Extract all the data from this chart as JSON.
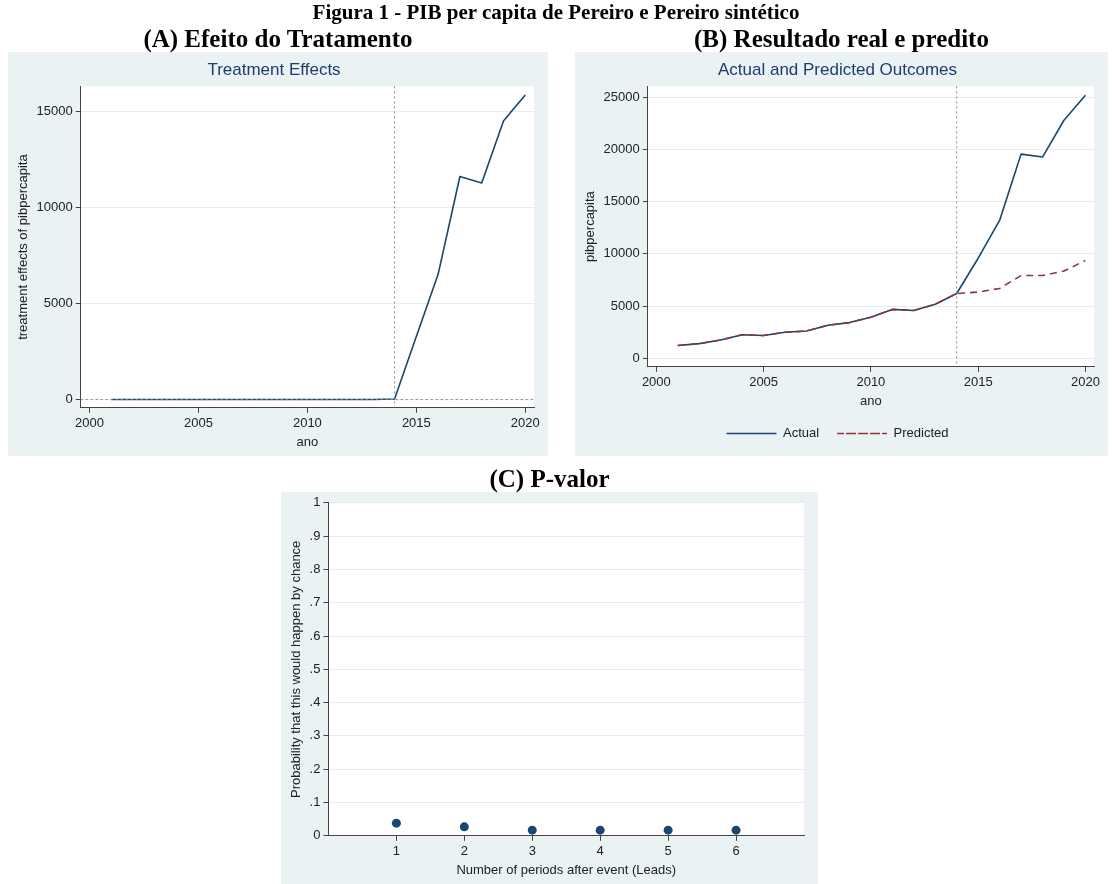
{
  "chart_data": [
    {
      "type": "line",
      "title": "Treatment Effects",
      "annotations": [
        "Figura 1 - PIB per capita de Pereiro e Pereiro sintético",
        "(A) Efeito do Tratamento"
      ],
      "xlabel": "ano",
      "ylabel": "treatment effects of pibpercapita",
      "x": [
        2001,
        2002,
        2003,
        2004,
        2005,
        2006,
        2007,
        2008,
        2009,
        2010,
        2011,
        2012,
        2013,
        2014,
        2015,
        2016,
        2017,
        2018,
        2019,
        2020
      ],
      "series": [
        {
          "color": "#1a476f",
          "values": [
            0,
            0,
            0,
            0,
            0,
            0,
            0,
            0,
            0,
            0,
            0,
            0,
            0,
            30,
            3290,
            6530,
            11630,
            11290,
            14530,
            15880
          ]
        }
      ],
      "xlim": [
        1999.6,
        2020.4
      ],
      "xticks": [
        2000,
        2005,
        2010,
        2015,
        2020
      ],
      "ylim": [
        -430,
        16330
      ],
      "yticks": [
        0,
        5000,
        10000,
        15000
      ],
      "ref_lines": [
        {
          "axis": "x",
          "value": 2014,
          "color": "#888888",
          "line_style": "dotted"
        },
        {
          "axis": "y",
          "value": 0,
          "color": "#888888",
          "line_style": "dotted"
        }
      ],
      "grid": "y",
      "legend": false,
      "marker": "none"
    },
    {
      "type": "line",
      "title": "Actual and Predicted Outcomes",
      "annotations": [
        "(B) Resultado real e predito"
      ],
      "xlabel": "ano",
      "ylabel": "pibpercapita",
      "x": [
        2001,
        2002,
        2003,
        2004,
        2005,
        2006,
        2007,
        2008,
        2009,
        2010,
        2011,
        2012,
        2013,
        2014,
        2015,
        2016,
        2017,
        2018,
        2019,
        2020
      ],
      "series": [
        {
          "name": "Actual",
          "color": "#1a476f",
          "line_style": "solid",
          "values": [
            1230,
            1410,
            1760,
            2250,
            2180,
            2500,
            2610,
            3170,
            3420,
            3940,
            4680,
            4580,
            5180,
            6200,
            9580,
            13200,
            19540,
            19260,
            22780,
            25180
          ]
        },
        {
          "name": "Predicted",
          "color": "#90353b",
          "line_style": "dashed",
          "values": [
            1230,
            1410,
            1760,
            2250,
            2180,
            2500,
            2610,
            3170,
            3420,
            3940,
            4680,
            4580,
            5180,
            6200,
            6340,
            6690,
            7920,
            7920,
            8350,
            9370
          ]
        }
      ],
      "xlim": [
        1999.6,
        2020.4
      ],
      "xticks": [
        2000,
        2005,
        2010,
        2015,
        2020
      ],
      "ylim": [
        -810,
        26020
      ],
      "yticks": [
        0,
        5000,
        10000,
        15000,
        20000,
        25000
      ],
      "ref_lines": [
        {
          "axis": "x",
          "value": 2014,
          "color": "#888888",
          "line_style": "dotted"
        }
      ],
      "grid": "y",
      "legend": "bottom",
      "marker": "none"
    },
    {
      "type": "scatter",
      "annotations": [
        "(C) P-valor"
      ],
      "xlabel": "Number of periods after event (Leads)",
      "ylabel": "Probability that this would happen by chance",
      "x": [
        1,
        2,
        3,
        4,
        5,
        6
      ],
      "series": [
        {
          "color": "#1a476f",
          "values": [
            0.038,
            0.027,
            0.017,
            0.017,
            0.017,
            0.017
          ]
        }
      ],
      "xlim": [
        0,
        7
      ],
      "xticks": [
        1,
        2,
        3,
        4,
        5,
        6
      ],
      "ylim": [
        0,
        1
      ],
      "yticks": [
        0,
        {
          "value": 0.1,
          "label": ".1"
        },
        {
          "value": 0.2,
          "label": ".2"
        },
        {
          "value": 0.3,
          "label": ".3"
        },
        {
          "value": 0.4,
          "label": ".4"
        },
        {
          "value": 0.5,
          "label": ".5"
        },
        {
          "value": 0.6,
          "label": ".6"
        },
        {
          "value": 0.7,
          "label": ".7"
        },
        {
          "value": 0.8,
          "label": ".8"
        },
        {
          "value": 0.9,
          "label": ".9"
        },
        1
      ],
      "grid": "y",
      "legend": false,
      "marker": "circle"
    }
  ]
}
